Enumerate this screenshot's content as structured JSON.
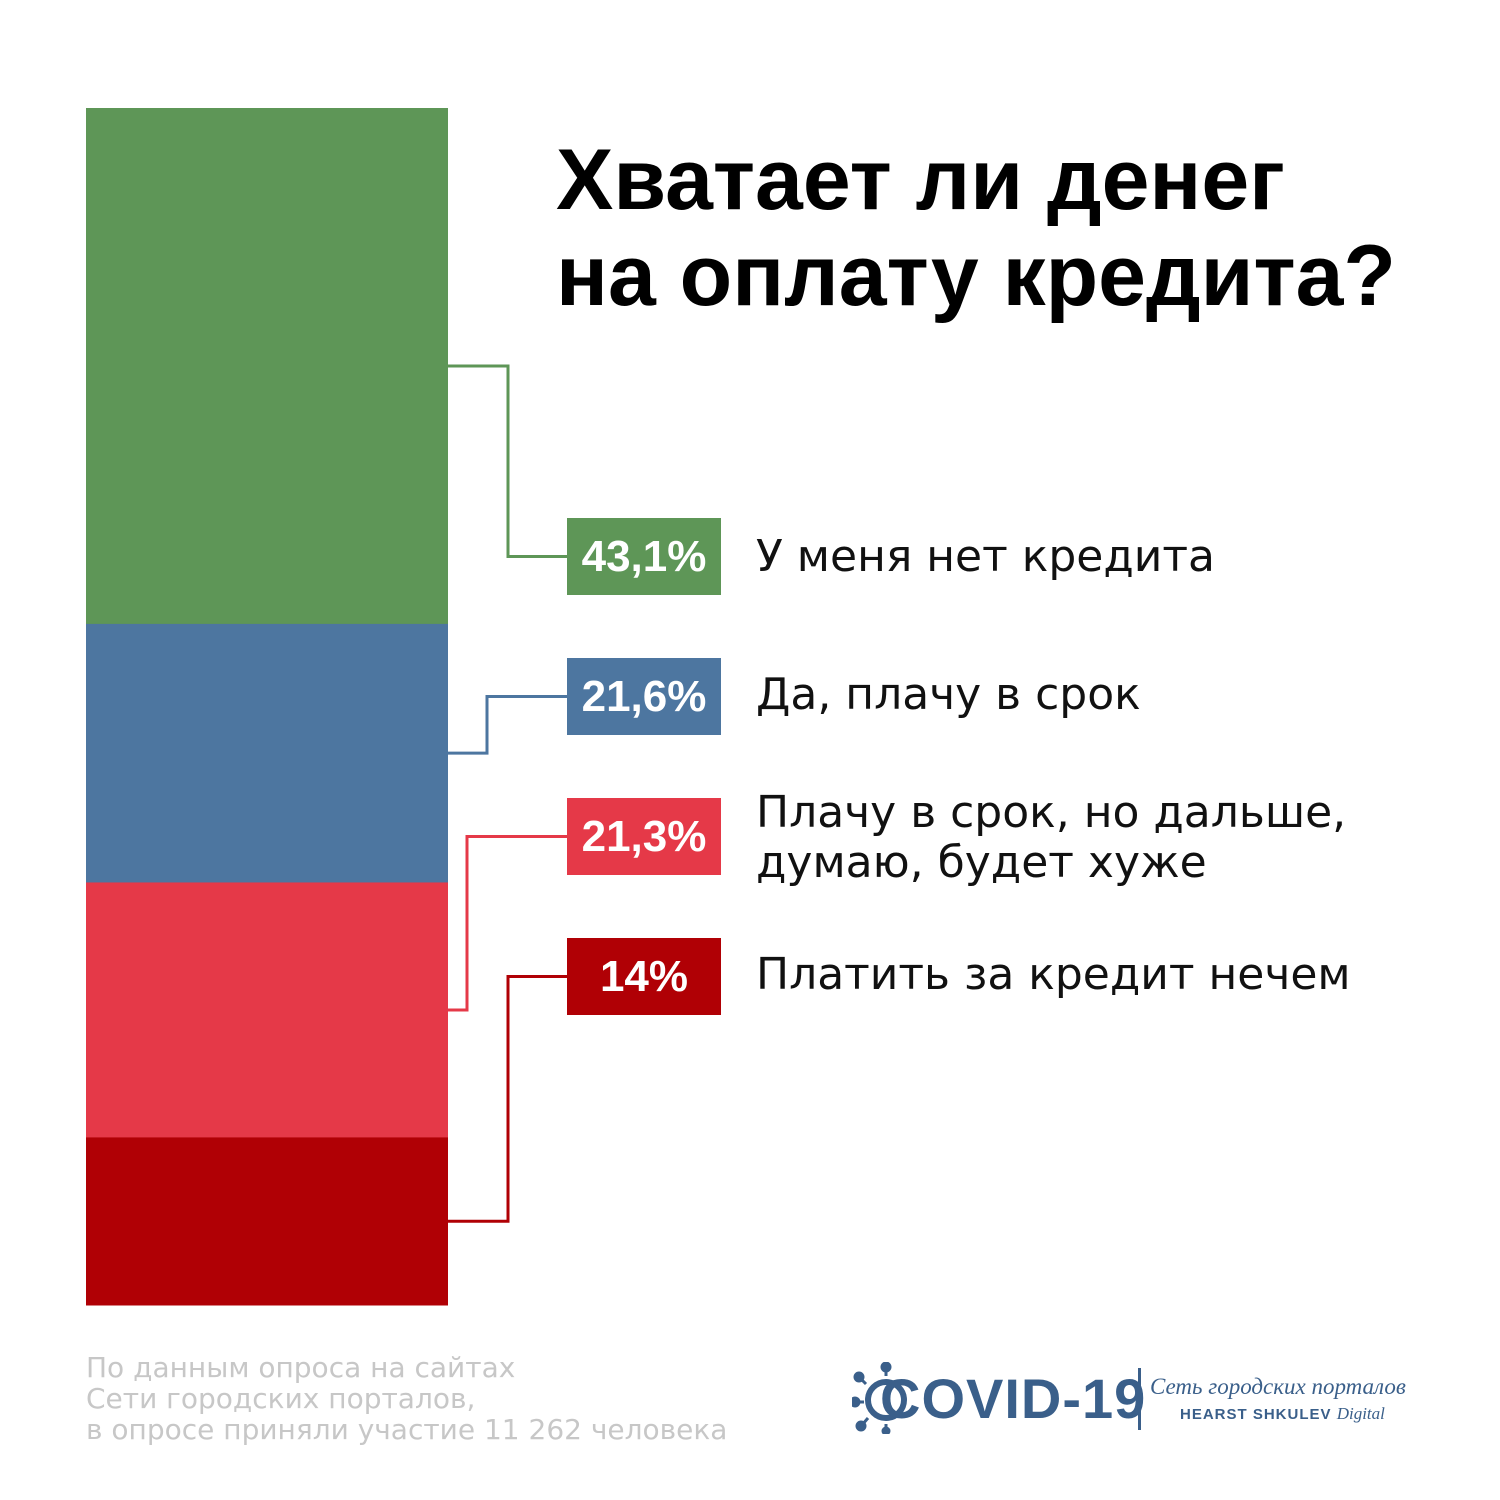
{
  "title_lines": [
    "Хватает ли денег",
    "на оплату кредита?"
  ],
  "chart_data": {
    "type": "bar",
    "stacked": true,
    "unit": "%",
    "categories": [
      "У меня нет кредита",
      "Да, плачу в срок",
      "Плачу в срок, но дальше, думаю, будет хуже",
      "Платить за кредит нечем"
    ],
    "values": [
      43.1,
      21.6,
      21.3,
      14
    ],
    "value_labels": [
      "43,1%",
      "21,6%",
      "21,3%",
      "14%"
    ],
    "label_lines": [
      [
        "У меня нет кредита"
      ],
      [
        "Да, плачу в срок"
      ],
      [
        "Плачу в срок, но дальше,",
        "думаю, будет хуже"
      ],
      [
        "Платить за кредит нечем"
      ]
    ],
    "colors": [
      "#5e9657",
      "#4d76a0",
      "#e53948",
      "#b00005"
    ]
  },
  "source_lines": [
    "По данным опроса на сайтах",
    "Сети городских порталов,",
    "в опросе приняли участие 11 262 человека"
  ],
  "logo": {
    "icon": "virus-icon",
    "text": "COVID-19",
    "network": "Сеть городских порталов",
    "brand": "HEARST SHKULEV",
    "brand_suffix": "Digital"
  }
}
